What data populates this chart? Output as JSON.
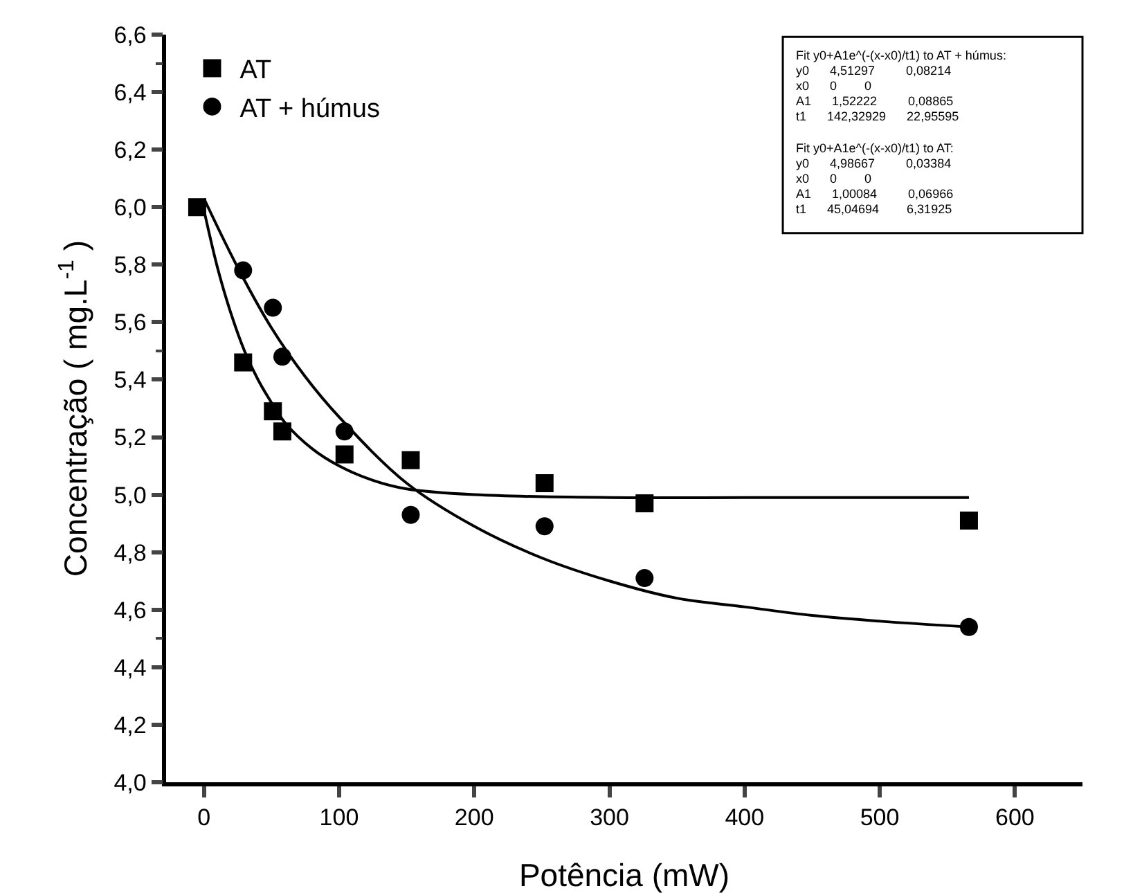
{
  "chart_data": {
    "type": "scatter",
    "xlabel": "Potência (mW)",
    "ylabel": "Concentração ( mg.L$^{-1}$ )",
    "xlim": [
      -28,
      650
    ],
    "xticks": [
      0,
      100,
      200,
      300,
      400,
      500,
      600
    ],
    "ylim": [
      4.0,
      6.6
    ],
    "yticks": [
      {
        "value": 4.0,
        "label": "4,0"
      },
      {
        "value": 4.2,
        "label": "4,2"
      },
      {
        "value": 4.4,
        "label": "4,4"
      },
      {
        "value": 4.6,
        "label": "4,6"
      },
      {
        "value": 4.8,
        "label": "4,8"
      },
      {
        "value": 5.0,
        "label": "5,0"
      },
      {
        "value": 5.2,
        "label": "5,2"
      },
      {
        "value": 5.4,
        "label": "5,4"
      },
      {
        "value": 5.6,
        "label": "5,6"
      },
      {
        "value": 5.8,
        "label": "5,8"
      },
      {
        "value": 6.0,
        "label": "6,0"
      },
      {
        "value": 6.2,
        "label": "6,2"
      },
      {
        "value": 6.4,
        "label": "6,4"
      },
      {
        "value": 6.6,
        "label": "6,6"
      }
    ],
    "grid": false,
    "legend": "top left",
    "series": [
      {
        "name": "AT",
        "marker": "square",
        "color": "#000000",
        "x": [
          -5,
          29,
          51,
          58,
          104,
          153,
          252,
          326,
          566
        ],
        "values": [
          6.0,
          5.46,
          5.29,
          5.22,
          5.14,
          5.12,
          5.04,
          4.97,
          4.91
        ]
      },
      {
        "name": "AT + húmus",
        "marker": "circle",
        "color": "#000000",
        "x": [
          29,
          51,
          58,
          104,
          153,
          252,
          326,
          566
        ],
        "values": [
          5.78,
          5.65,
          5.48,
          5.22,
          4.93,
          4.89,
          4.71,
          4.54
        ]
      },
      {
        "type": "line",
        "marker": "none",
        "color": "#000000",
        "x": [
          0,
          10,
          20,
          30,
          40,
          50,
          60,
          80,
          100,
          125,
          150,
          200,
          300,
          400,
          566
        ],
        "values": [
          5.99,
          5.79,
          5.63,
          5.5,
          5.4,
          5.32,
          5.25,
          5.16,
          5.1,
          5.05,
          5.02,
          5.0,
          4.99,
          4.99,
          4.99
        ]
      },
      {
        "type": "line",
        "marker": "none",
        "color": "#000000",
        "x": [
          0,
          25,
          50,
          75,
          100,
          150,
          200,
          250,
          300,
          350,
          400,
          450,
          500,
          566
        ],
        "values": [
          6.03,
          5.79,
          5.58,
          5.41,
          5.27,
          5.04,
          4.89,
          4.78,
          4.7,
          4.64,
          4.61,
          4.58,
          4.56,
          4.54
        ]
      }
    ],
    "annotations": [
      "Fit y0+A1e^(-(x-x0)/t1) to AT + húmus:\ny0      4,51297         0,08214\nx0      0        0\nA1      1,52222         0,08865\nt1      142,32929      22,95595",
      "Fit y0+A1e^(-(x-x0)/t1) to AT:\ny0      4,98667         0,03384\nx0      0        0\nA1      1,00084         0,06966\nt1      45,04694        6,31925"
    ]
  }
}
